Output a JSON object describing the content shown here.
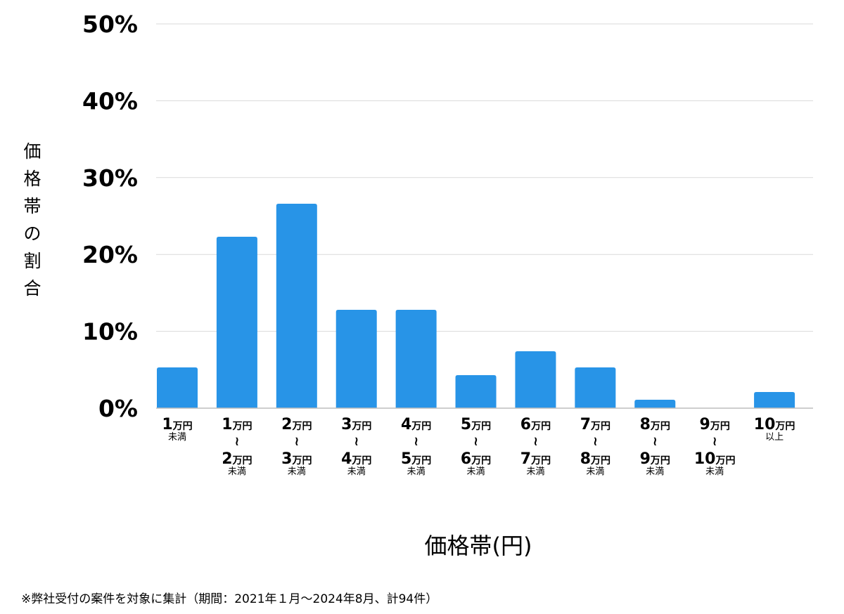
{
  "chart_data": {
    "type": "bar",
    "title": "",
    "xlabel": "価格帯(円)",
    "ylabel": "価格帯の割合",
    "ylim": [
      0,
      50
    ],
    "yticks": [
      "0%",
      "10%",
      "20%",
      "30%",
      "40%",
      "50%"
    ],
    "grid": true,
    "bar_color": "#2894e7",
    "categories": [
      "1万円未満",
      "1万円〜2万円未満",
      "2万円〜3万円未満",
      "3万円〜4万円未満",
      "4万円〜5万円未満",
      "5万円〜6万円未満",
      "6万円〜7万円未満",
      "7万円〜8万円未満",
      "8万円〜9万円未満",
      "9万円〜10万円未満",
      "10万円以上"
    ],
    "category_labels": [
      {
        "from_num": "1",
        "from_unit": "万円",
        "to_num": "",
        "to_unit": "",
        "suffix": "未満"
      },
      {
        "from_num": "1",
        "from_unit": "万円",
        "to_num": "2",
        "to_unit": "万円",
        "suffix": "未満"
      },
      {
        "from_num": "2",
        "from_unit": "万円",
        "to_num": "3",
        "to_unit": "万円",
        "suffix": "未満"
      },
      {
        "from_num": "3",
        "from_unit": "万円",
        "to_num": "4",
        "to_unit": "万円",
        "suffix": "未満"
      },
      {
        "from_num": "4",
        "from_unit": "万円",
        "to_num": "5",
        "to_unit": "万円",
        "suffix": "未満"
      },
      {
        "from_num": "5",
        "from_unit": "万円",
        "to_num": "6",
        "to_unit": "万円",
        "suffix": "未満"
      },
      {
        "from_num": "6",
        "from_unit": "万円",
        "to_num": "7",
        "to_unit": "万円",
        "suffix": "未満"
      },
      {
        "from_num": "7",
        "from_unit": "万円",
        "to_num": "8",
        "to_unit": "万円",
        "suffix": "未満"
      },
      {
        "from_num": "8",
        "from_unit": "万円",
        "to_num": "9",
        "to_unit": "万円",
        "suffix": "未満"
      },
      {
        "from_num": "9",
        "from_unit": "万円",
        "to_num": "10",
        "to_unit": "万円",
        "suffix": "未満"
      },
      {
        "from_num": "10",
        "from_unit": "万円",
        "to_num": "",
        "to_unit": "",
        "suffix": "以上"
      }
    ],
    "wave_glyph": "≀",
    "values": [
      5.3,
      22.3,
      26.6,
      12.8,
      12.8,
      4.3,
      7.4,
      5.3,
      1.1,
      0,
      2.1
    ]
  },
  "ylabel_chars": [
    "価",
    "格",
    "帯",
    "の",
    "割",
    "合"
  ],
  "footnote": "※弊社受付の案件を対象に集計（期間：2021年１月〜2024年8月、計94件）"
}
